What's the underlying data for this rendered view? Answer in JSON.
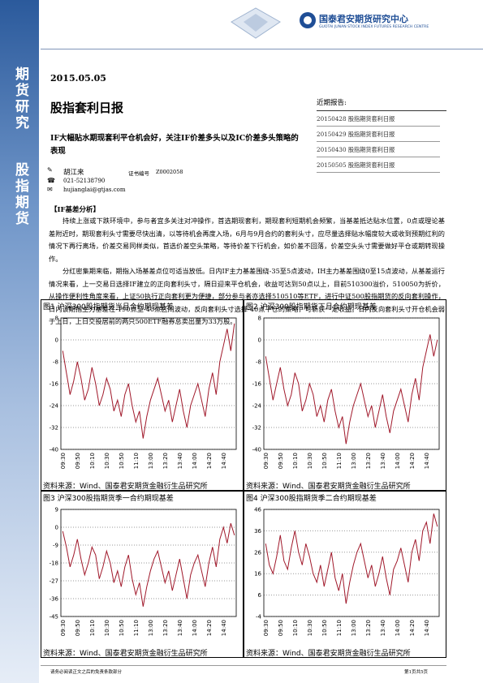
{
  "header": {
    "org_cn": "国泰君安期货研究中心",
    "org_en": "GUOTAI JUNAN STOCK INDEX FUTURES RESEARCH CENTRE"
  },
  "sidebar": {
    "top": "期货研究",
    "bottom": "股指期货"
  },
  "date": "2015.05.05",
  "title": "股指套利日报",
  "subtitle": "IF大幅贴水期现套利平仓机会好，关注IF价差多头以及IC价差多头策略的表现",
  "author": {
    "name": "胡江来",
    "cert_label": "证书编号",
    "cert": "Z0002058",
    "phone": "021-52138790",
    "email": "hujianglai@gtjas.com"
  },
  "recent": {
    "title": "近期报告:",
    "items": [
      "20150428 股指期货套利日报",
      "20150429 股指期货套利日报",
      "20150430 股指期货套利日报",
      "20150505 股指期货套利日报"
    ]
  },
  "section": "【IF基差分析】",
  "paragraphs": [
    "持续上涨或下跌环境中，参与者宜多关注对冲操作，首选期现套利，期现套利短期机会频繁，当基差抵达贴水位置，0点或理论基差附近时，期现套利头寸需要尽快出清，以等待机会再度入场，6月与9月合约的套利头寸，应尽量选择贴水幅度较大或收到预期红利的情况下再行离场，价差交易同样类似，首选价差空头策略，等待价差下行机会，如价差不回落，价差空头头寸需要做好平仓或期转现操作。",
    "分红密集期来临，期指入场基差点位可适当放低。日内IF主力基差围绕-35至5点波动，IH主力基差围绕0至15点波动，从基差运行情况来看，上一交易日选择IF建立的正向套利头寸，隔日迎来平仓机会，收益可达到50点以上，目前510300溢价，510050为折价，从操作便利性角度来看，上证50执行正向套利更为便捷，部分参与者亦选择510510等ETF，进行中证500股指期货的反向套利操作，日内该期指主力基差在-190点至-40点区间波动，反向套利头寸选择-40点平仓的策略，可斩获一定收益。日内反向套利头寸开仓机会弱于上日，上日交投居前的两只500ETF融券总卖出量为33万股。"
  ],
  "footer": {
    "left": "请务必阅读正文之后的免责条款部分",
    "right": "第1页共5页"
  },
  "chart_data": [
    {
      "type": "line",
      "title": "图1 沪深300股指期货当月合约期现基差",
      "source": "资料来源：Wind、国泰君安期货金融衍生品研究所",
      "categories": [
        "09:30",
        null,
        null,
        null,
        "09:50",
        null,
        null,
        null,
        "10:10",
        null,
        null,
        null,
        "10:30",
        null,
        null,
        null,
        "10:50",
        null,
        null,
        null,
        "11:10",
        null,
        null,
        null,
        "13:00",
        null,
        null,
        null,
        "13:20",
        null,
        null,
        null,
        "13:40",
        null,
        null,
        null,
        "14:00",
        null,
        null,
        null,
        "14:20",
        null,
        null,
        null,
        "14:40",
        null,
        null,
        null
      ],
      "series": [
        {
          "color": "#a0182a",
          "values": [
            -4,
            -12,
            -20,
            -15,
            -8,
            -14,
            -22,
            -18,
            -10,
            -16,
            -24,
            -20,
            -14,
            -18,
            -26,
            -22,
            -28,
            -20,
            -16,
            -24,
            -30,
            -26,
            -36,
            -28,
            -22,
            -18,
            -14,
            -20,
            -26,
            -22,
            -30,
            -24,
            -18,
            -26,
            -32,
            -24,
            -20,
            -16,
            -22,
            -28,
            -18,
            -12,
            -20,
            -8,
            -2,
            4,
            -4,
            6
          ]
        }
      ],
      "ylim": [
        -40,
        8
      ],
      "yticks": [
        8,
        0,
        -8,
        -16,
        -24,
        -32,
        -40
      ],
      "grid": true
    },
    {
      "type": "line",
      "title": "图2 沪深300股指期货下月合约期现基差",
      "source": "资料来源：Wind、国泰君安期货金融衍生品研究所",
      "categories": [
        "09:30",
        null,
        null,
        null,
        "09:50",
        null,
        null,
        null,
        "10:10",
        null,
        null,
        null,
        "10:30",
        null,
        null,
        null,
        "10:50",
        null,
        null,
        null,
        "11:10",
        null,
        null,
        null,
        "13:00",
        null,
        null,
        null,
        "13:20",
        null,
        null,
        null,
        "13:40",
        null,
        null,
        null,
        "14:00",
        null,
        null,
        null,
        "14:20",
        null,
        null,
        null,
        "14:40",
        null,
        null,
        null
      ],
      "series": [
        {
          "color": "#a0182a",
          "values": [
            -6,
            -14,
            -22,
            -16,
            -10,
            -18,
            -24,
            -20,
            -12,
            -16,
            -26,
            -22,
            -16,
            -20,
            -28,
            -24,
            -30,
            -22,
            -18,
            -26,
            -32,
            -28,
            -38,
            -30,
            -24,
            -20,
            -16,
            -22,
            -28,
            -24,
            -32,
            -26,
            -20,
            -28,
            -34,
            -26,
            -22,
            -18,
            -24,
            -30,
            -20,
            -14,
            -22,
            -10,
            -4,
            2,
            -6,
            0
          ]
        }
      ],
      "ylim": [
        -40,
        8
      ],
      "yticks": [
        8,
        0,
        -8,
        -16,
        -24,
        -32,
        -40
      ],
      "grid": true
    },
    {
      "type": "line",
      "title": "图3 沪深300股指期货季一合约期现基差",
      "source": "资料来源：Wind、国泰君安期货金融衍生品研究所",
      "categories": [
        "09:30",
        null,
        null,
        null,
        "09:50",
        null,
        null,
        null,
        "10:10",
        null,
        null,
        null,
        "10:30",
        null,
        null,
        null,
        "10:50",
        null,
        null,
        null,
        "11:10",
        null,
        null,
        null,
        "13:00",
        null,
        null,
        null,
        "13:20",
        null,
        null,
        null,
        "13:40",
        null,
        null,
        null,
        "14:00",
        null,
        null,
        null,
        "14:20",
        null,
        null,
        null,
        "14:40",
        null,
        null,
        null
      ],
      "series": [
        {
          "color": "#a0182a",
          "values": [
            -2,
            -10,
            -20,
            -14,
            -6,
            -16,
            -24,
            -18,
            -10,
            -14,
            -26,
            -20,
            -12,
            -18,
            -28,
            -22,
            -30,
            -20,
            -14,
            -26,
            -34,
            -28,
            -40,
            -30,
            -22,
            -16,
            -12,
            -20,
            -28,
            -22,
            -32,
            -24,
            -16,
            -26,
            -36,
            -24,
            -18,
            -14,
            -22,
            -30,
            -18,
            -10,
            -20,
            -6,
            0,
            -8,
            2,
            -4
          ]
        }
      ],
      "ylim": [
        -45,
        9
      ],
      "yticks": [
        9,
        0,
        -9,
        -18,
        -27,
        -36,
        -45
      ],
      "grid": true
    },
    {
      "type": "line",
      "title": "图4 沪深300股指期货季二合约期现基差",
      "source": "资料来源：Wind、国泰君安期货金融衍生品研究所",
      "categories": [
        "09:30",
        null,
        null,
        null,
        "09:50",
        null,
        null,
        null,
        "10:10",
        null,
        null,
        null,
        "10:30",
        null,
        null,
        null,
        "10:50",
        null,
        null,
        null,
        "11:10",
        null,
        null,
        null,
        "13:00",
        null,
        null,
        null,
        "13:20",
        null,
        null,
        null,
        "13:40",
        null,
        null,
        null,
        "14:00",
        null,
        null,
        null,
        "14:20",
        null,
        null,
        null,
        "14:40",
        null,
        null,
        null
      ],
      "series": [
        {
          "color": "#a0182a",
          "values": [
            30,
            20,
            16,
            24,
            34,
            22,
            18,
            28,
            36,
            26,
            20,
            30,
            24,
            16,
            12,
            20,
            10,
            18,
            26,
            14,
            8,
            16,
            2,
            12,
            20,
            26,
            30,
            22,
            14,
            20,
            10,
            16,
            24,
            14,
            6,
            18,
            22,
            28,
            20,
            12,
            26,
            32,
            22,
            36,
            40,
            30,
            44,
            38
          ]
        }
      ],
      "ylim": [
        -4,
        46
      ],
      "yticks": [
        46,
        36,
        26,
        16,
        6,
        -4
      ],
      "grid": true
    }
  ]
}
